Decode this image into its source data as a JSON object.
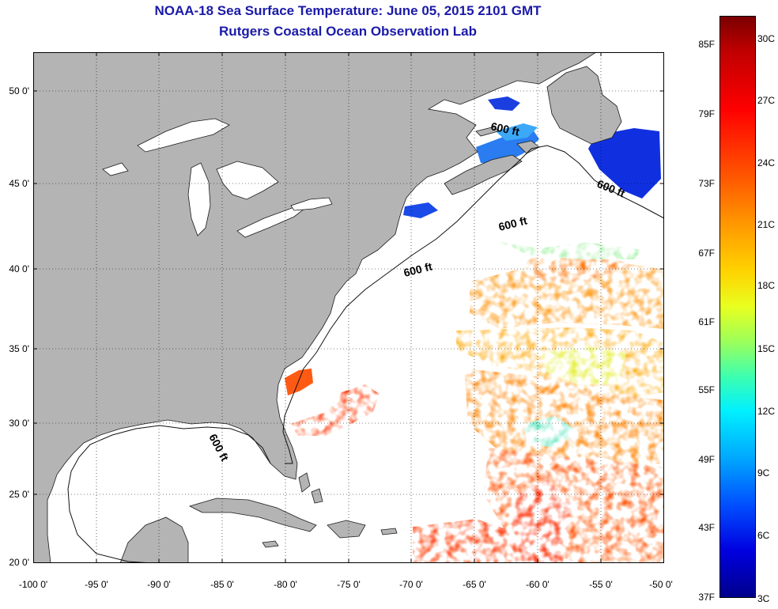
{
  "header": {
    "title": "NOAA-18 Sea Surface Temperature:  June 05, 2015 2101 GMT",
    "subtitle": "Rutgers Coastal Ocean Observation Lab"
  },
  "map": {
    "lon_range": [
      -100,
      -50
    ],
    "lat_range": [
      20,
      52.5
    ],
    "lat_labels": [
      "50 0'",
      "45 0'",
      "40 0'",
      "35 0'",
      "30 0'",
      "25 0'",
      "20 0'"
    ],
    "lon_labels": [
      "-100 0'",
      "-95 0'",
      "-90 0'",
      "-85 0'",
      "-80 0'",
      "-75 0'",
      "-70 0'",
      "-65 0'",
      "-60 0'",
      "-55 0'",
      "-50 0'"
    ],
    "contour_label": "600 ft",
    "land_color": "#b4b4b4",
    "grid": true
  },
  "colorbar": {
    "fahrenheit_ticks": [
      "85F",
      "79F",
      "73F",
      "67F",
      "61F",
      "55F",
      "49F",
      "43F",
      "37F"
    ],
    "celsius_ticks": [
      "30C",
      "27C",
      "24C",
      "21C",
      "18C",
      "15C",
      "12C",
      "9C",
      "6C",
      "3C"
    ],
    "range_c": [
      3,
      31
    ]
  }
}
